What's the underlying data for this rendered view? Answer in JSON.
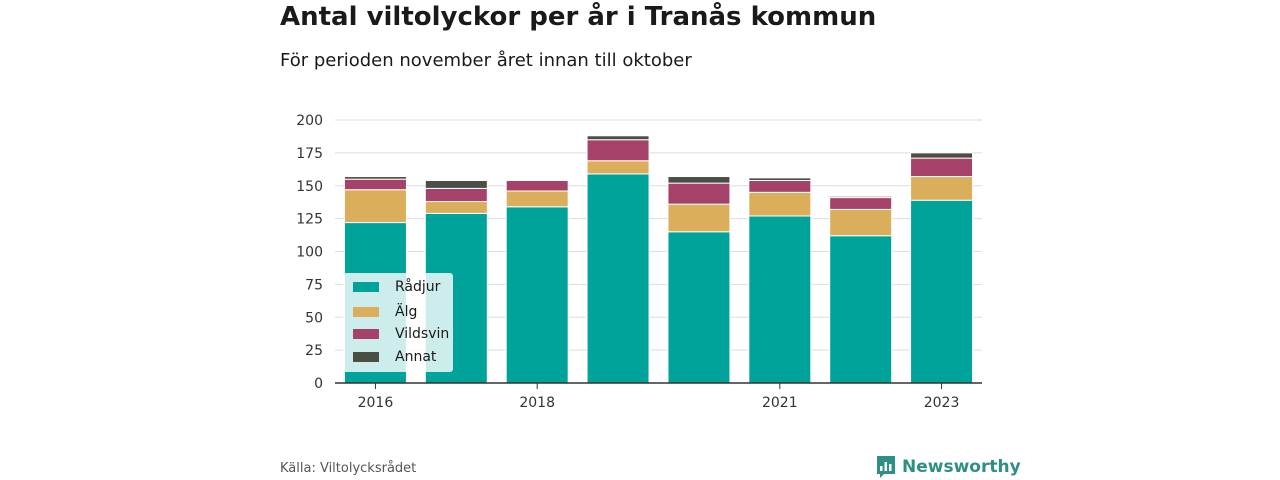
{
  "header": {
    "title": "Antal viltolyckor per år i Tranås kommun",
    "subtitle": "För perioden november året innan till oktober"
  },
  "footer": {
    "source": "Källa: Viltolycksrådet",
    "brand": "Newsworthy",
    "brand_color": "#2e8f85"
  },
  "legend": {
    "items": [
      {
        "label": "Rådjur",
        "color": "#00a39a"
      },
      {
        "label": "Älg",
        "color": "#dbae5c"
      },
      {
        "label": "Vildsvin",
        "color": "#a6416a"
      },
      {
        "label": "Annat",
        "color": "#4b4e42"
      }
    ]
  },
  "chart_data": {
    "type": "bar",
    "stacked": true,
    "categories": [
      "2016",
      "2017",
      "2018",
      "2019",
      "2020",
      "2021",
      "2022",
      "2023"
    ],
    "x_tick_labels": [
      "2016",
      "",
      "2018",
      "",
      "",
      "2021",
      "",
      "2023"
    ],
    "series": [
      {
        "name": "Rådjur",
        "color": "#00a39a",
        "values": [
          122,
          129,
          134,
          159,
          115,
          127,
          112,
          139
        ]
      },
      {
        "name": "Älg",
        "color": "#dbae5c",
        "values": [
          25,
          9,
          12,
          10,
          21,
          18,
          20,
          18
        ]
      },
      {
        "name": "Vildsvin",
        "color": "#a6416a",
        "values": [
          8,
          10,
          8,
          16,
          16,
          9,
          9,
          14
        ]
      },
      {
        "name": "Annat",
        "color": "#4b4e42",
        "values": [
          2,
          6,
          0,
          3,
          5,
          2,
          1,
          4
        ]
      }
    ],
    "ylim": [
      0,
      200
    ],
    "yticks": [
      0,
      25,
      50,
      75,
      100,
      125,
      150,
      175,
      200
    ],
    "grid": true,
    "legend_position": "bottom-left"
  }
}
